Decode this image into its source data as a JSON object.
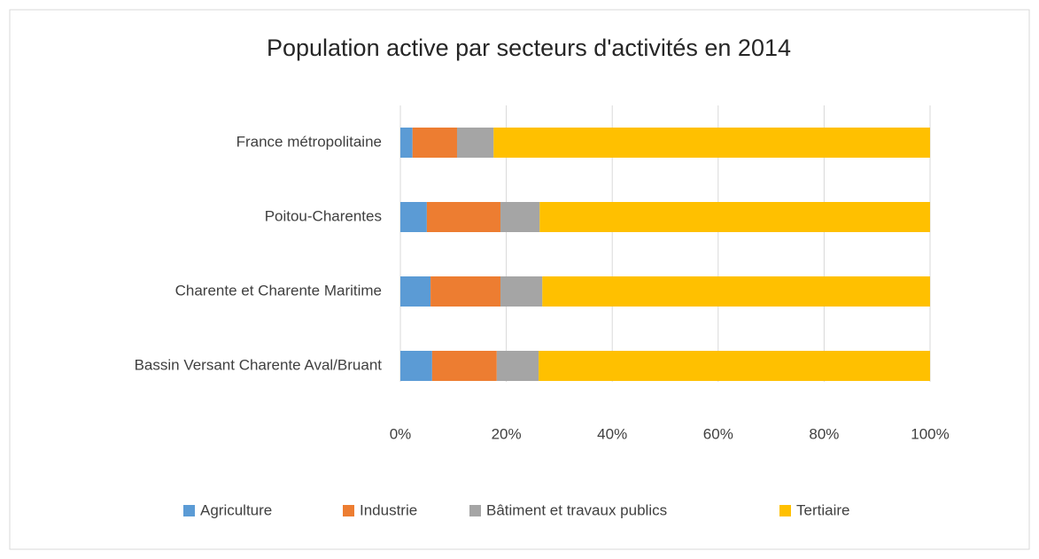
{
  "chart_data": {
    "type": "stacked_barh",
    "title": "Population active par secteurs d'activités en 2014",
    "categories": [
      "France métropolitaine",
      "Poitou-Charentes",
      "Charente et Charente Maritime",
      "Bassin Versant Charente Aval/Bruant"
    ],
    "series": [
      {
        "name": "Agriculture",
        "color": "#5b9bd5",
        "values": [
          2.3,
          5.0,
          5.7,
          6.0
        ]
      },
      {
        "name": "Industrie",
        "color": "#ed7d31",
        "values": [
          8.4,
          13.9,
          13.2,
          12.2
        ]
      },
      {
        "name": "Bâtiment et travaux publics",
        "color": "#a5a5a5",
        "values": [
          6.9,
          7.4,
          7.9,
          7.9
        ]
      },
      {
        "name": "Tertiaire",
        "color": "#ffc000",
        "values": [
          82.4,
          73.7,
          73.2,
          73.9
        ]
      }
    ],
    "xlim": [
      0,
      100
    ],
    "xticks": [
      {
        "value": 0,
        "label": "0%"
      },
      {
        "value": 20,
        "label": "20%"
      },
      {
        "value": 40,
        "label": "40%"
      },
      {
        "value": 60,
        "label": "60%"
      },
      {
        "value": 80,
        "label": "80%"
      },
      {
        "value": 100,
        "label": "100%"
      }
    ],
    "grid": true,
    "legend": "bottom"
  }
}
